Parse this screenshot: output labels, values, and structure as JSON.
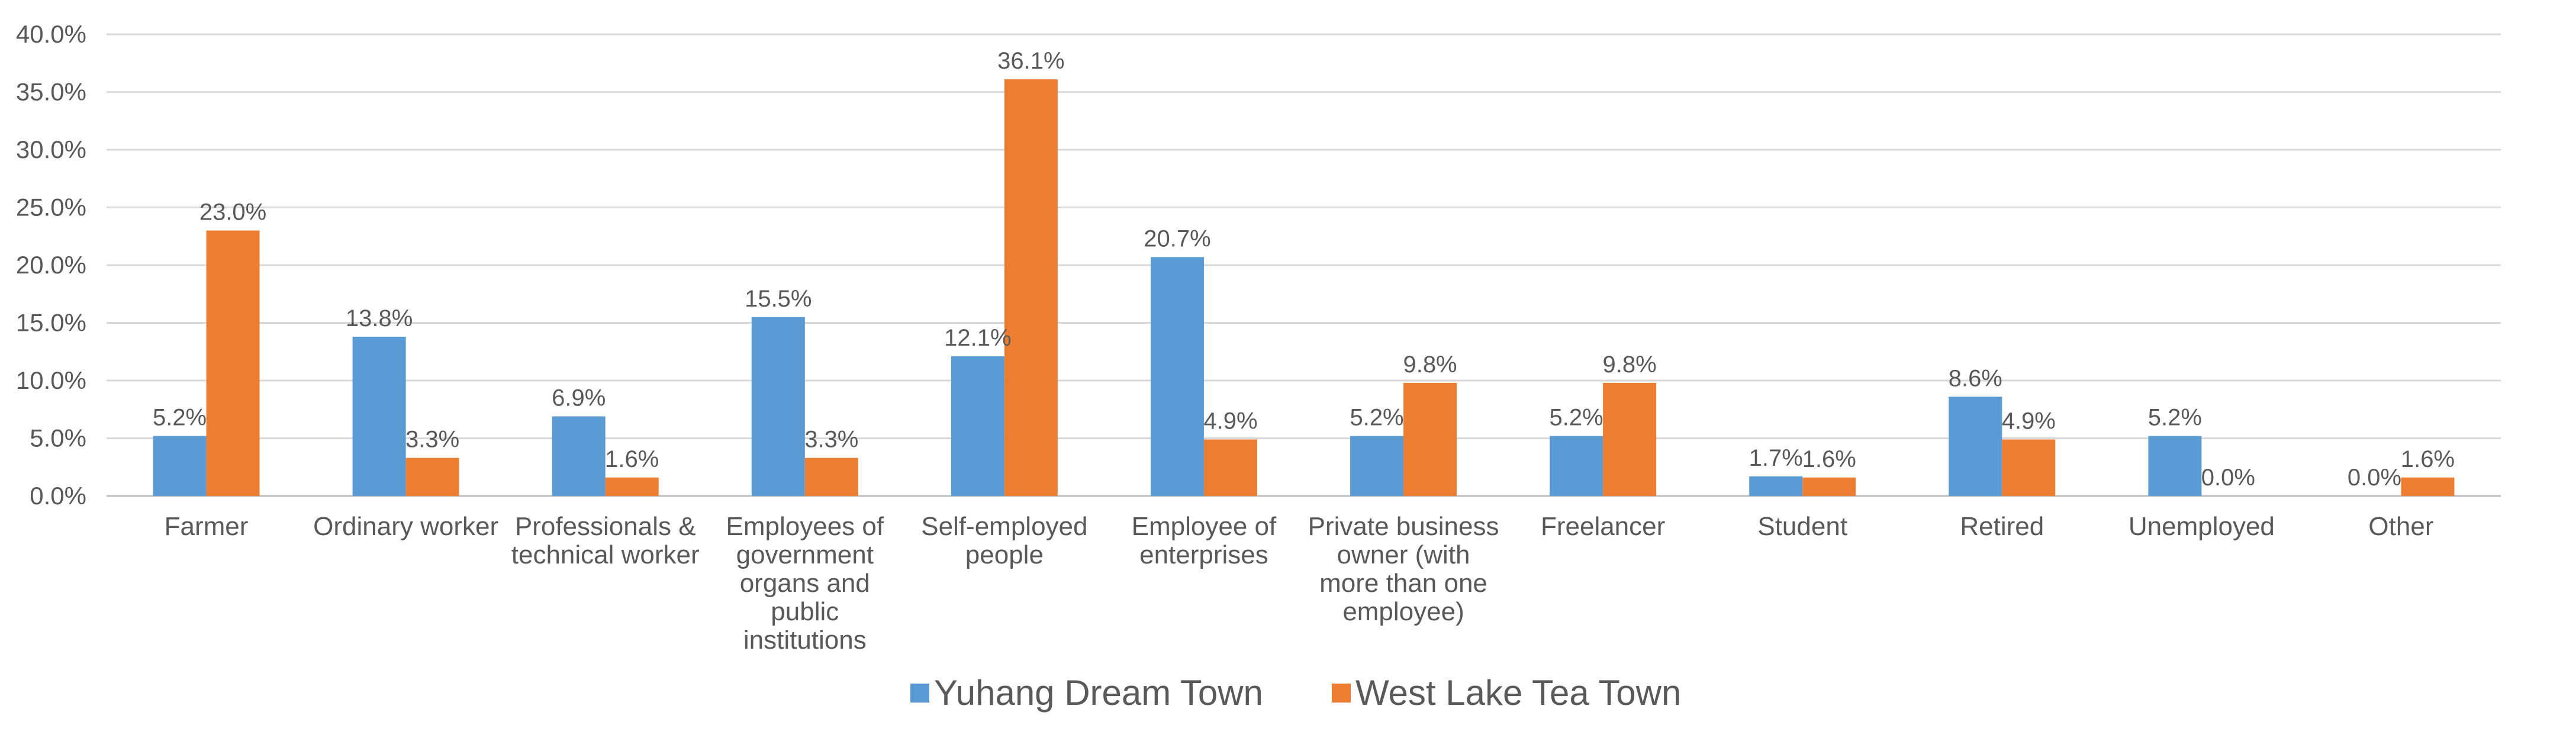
{
  "chart_data": {
    "type": "bar",
    "categories": [
      [
        "Farmer"
      ],
      [
        "Ordinary worker"
      ],
      [
        "Professionals &",
        "technical worker"
      ],
      [
        "Employees of",
        "government",
        "organs and",
        "public",
        "institutions"
      ],
      [
        "Self-employed",
        "people"
      ],
      [
        "Employee of",
        "enterprises"
      ],
      [
        "Private business",
        "owner (with",
        "more than one",
        "employee)"
      ],
      [
        "Freelancer"
      ],
      [
        "Student"
      ],
      [
        "Retired"
      ],
      [
        "Unemployed"
      ],
      [
        "Other"
      ]
    ],
    "series": [
      {
        "name": "Yuhang Dream Town",
        "color": "#5B9BD5",
        "values": [
          5.2,
          13.8,
          6.9,
          15.5,
          12.1,
          20.7,
          5.2,
          5.2,
          1.7,
          8.6,
          5.2,
          0.0
        ],
        "labels": [
          "5.2%",
          "13.8%",
          "6.9%",
          "15.5%",
          "12.1%",
          "20.7%",
          "5.2%",
          "5.2%",
          "1.7%",
          "8.6%",
          "5.2%",
          "0.0%"
        ]
      },
      {
        "name": "West Lake Tea Town",
        "color": "#ED7D31",
        "values": [
          23.0,
          3.3,
          1.6,
          3.3,
          36.1,
          4.9,
          9.8,
          9.8,
          1.6,
          4.9,
          0.0,
          1.6
        ],
        "labels": [
          "23.0%",
          "3.3%",
          "1.6%",
          "3.3%",
          "36.1%",
          "4.9%",
          "9.8%",
          "9.8%",
          "1.6%",
          "4.9%",
          "0.0%",
          "1.6%"
        ]
      }
    ],
    "ylim": [
      0,
      40
    ],
    "yticks": [
      "0.0%",
      "5.0%",
      "10.0%",
      "15.0%",
      "20.0%",
      "25.0%",
      "30.0%",
      "35.0%",
      "40.0%"
    ],
    "grid": true,
    "legend": "bottom"
  }
}
